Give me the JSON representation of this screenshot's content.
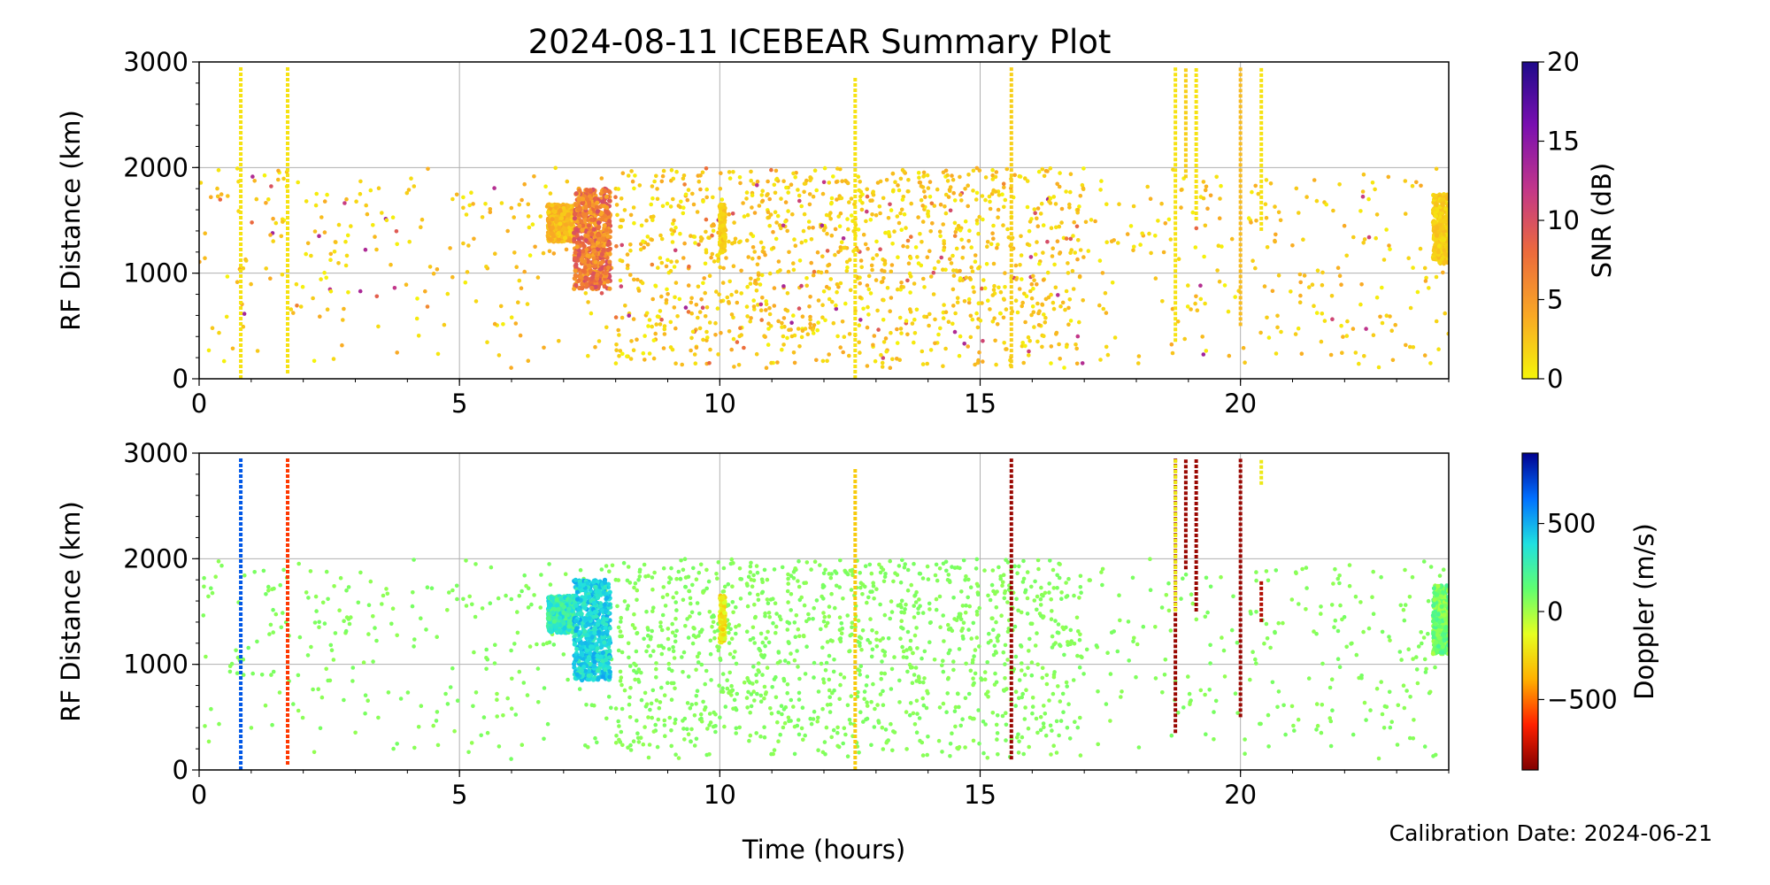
{
  "chart_data": [
    {
      "type": "scatter",
      "title": "2024-08-11 ICEBEAR Summary Plot",
      "xlabel": "",
      "ylabel": "RF Distance (km)",
      "xlim": [
        0,
        24
      ],
      "ylim": [
        0,
        3000
      ],
      "xticks": [
        "0",
        "5",
        "10",
        "15",
        "20"
      ],
      "yticks": [
        "0",
        "1000",
        "2000",
        "3000"
      ],
      "grid": true,
      "colorbar": {
        "label": "SNR (dB)",
        "range": [
          0,
          20
        ],
        "ticks": [
          "0",
          "5",
          "10",
          "15",
          "20"
        ],
        "colormap": [
          "#f5f50a",
          "#f9a825",
          "#ec6a3c",
          "#c2368a",
          "#7a0fb0",
          "#1e0a8a"
        ]
      },
      "background_scatter": {
        "x_range": [
          0,
          24
        ],
        "y_range": [
          100,
          2000
        ],
        "density_peak_hours": [
          8,
          17
        ],
        "typical_value": 2
      },
      "streaks": [
        {
          "x": 0.8,
          "y0": 0,
          "y1": 2950,
          "value": 1
        },
        {
          "x": 1.7,
          "y0": 50,
          "y1": 2950,
          "value": 1
        },
        {
          "x": 12.6,
          "y0": 0,
          "y1": 2850,
          "value": 1
        },
        {
          "x": 15.6,
          "y0": 100,
          "y1": 2950,
          "value": 2
        },
        {
          "x": 18.75,
          "y0": 350,
          "y1": 2950,
          "value": 1
        },
        {
          "x": 18.95,
          "y0": 1900,
          "y1": 2950,
          "value": 2
        },
        {
          "x": 19.15,
          "y0": 1500,
          "y1": 2950,
          "value": 1
        },
        {
          "x": 20.0,
          "y0": 500,
          "y1": 2950,
          "value": 3
        },
        {
          "x": 20.4,
          "y0": 1400,
          "y1": 2950,
          "value": 1
        }
      ],
      "clusters": [
        {
          "x0": 6.7,
          "x1": 7.2,
          "y0": 1300,
          "y1": 1650,
          "value": 3
        },
        {
          "x0": 7.2,
          "x1": 7.9,
          "y0": 850,
          "y1": 1800,
          "value": 7
        },
        {
          "x0": 10.0,
          "x1": 10.1,
          "y0": 1200,
          "y1": 1650,
          "value": 2
        },
        {
          "x0": 23.7,
          "x1": 24.0,
          "y0": 1100,
          "y1": 1750,
          "value": 2
        }
      ]
    },
    {
      "type": "scatter",
      "title": "",
      "xlabel": "Time (hours)",
      "ylabel": "RF Distance (km)",
      "xlim": [
        0,
        24
      ],
      "ylim": [
        0,
        3000
      ],
      "xticks": [
        "0",
        "5",
        "10",
        "15",
        "20"
      ],
      "yticks": [
        "0",
        "1000",
        "2000",
        "3000"
      ],
      "grid": true,
      "colorbar": {
        "label": "Doppler (m/s)",
        "range": [
          -900,
          900
        ],
        "ticks": [
          "−500",
          "0",
          "500"
        ],
        "tick_values": [
          -500,
          0,
          500
        ],
        "colormap": [
          "#800000",
          "#ff2000",
          "#ffb000",
          "#e6ff20",
          "#60ff70",
          "#20e0e0",
          "#0070ff",
          "#00008f"
        ]
      },
      "background_scatter": {
        "x_range": [
          0,
          24
        ],
        "y_range": [
          100,
          2000
        ],
        "density_peak_hours": [
          8,
          17
        ],
        "typical_value": 60
      },
      "streaks": [
        {
          "x": 0.8,
          "y0": 0,
          "y1": 2950,
          "value": 700
        },
        {
          "x": 1.7,
          "y0": 50,
          "y1": 2950,
          "value": -600
        },
        {
          "x": 12.6,
          "y0": 0,
          "y1": 2850,
          "value": -300
        },
        {
          "x": 15.6,
          "y0": 100,
          "y1": 2950,
          "value": -850
        },
        {
          "x": 18.75,
          "y0": 350,
          "y1": 2950,
          "value": -850
        },
        {
          "x": 18.75,
          "y0": 1500,
          "y1": 2950,
          "value": -200
        },
        {
          "x": 18.95,
          "y0": 1900,
          "y1": 2950,
          "value": -850
        },
        {
          "x": 19.15,
          "y0": 1500,
          "y1": 2950,
          "value": -850
        },
        {
          "x": 20.0,
          "y0": 500,
          "y1": 2950,
          "value": -850
        },
        {
          "x": 20.4,
          "y0": 2700,
          "y1": 2950,
          "value": -200
        },
        {
          "x": 20.4,
          "y0": 1400,
          "y1": 1800,
          "value": -800
        }
      ],
      "clusters": [
        {
          "x0": 6.7,
          "x1": 7.2,
          "y0": 1300,
          "y1": 1650,
          "value": 300
        },
        {
          "x0": 7.2,
          "x1": 7.9,
          "y0": 850,
          "y1": 1800,
          "value": 400
        },
        {
          "x0": 10.0,
          "x1": 10.1,
          "y0": 1200,
          "y1": 1650,
          "value": -200
        },
        {
          "x0": 23.7,
          "x1": 24.0,
          "y0": 1100,
          "y1": 1750,
          "value": 100
        }
      ]
    }
  ],
  "footer": {
    "calibration": "Calibration Date: 2024-06-21"
  }
}
